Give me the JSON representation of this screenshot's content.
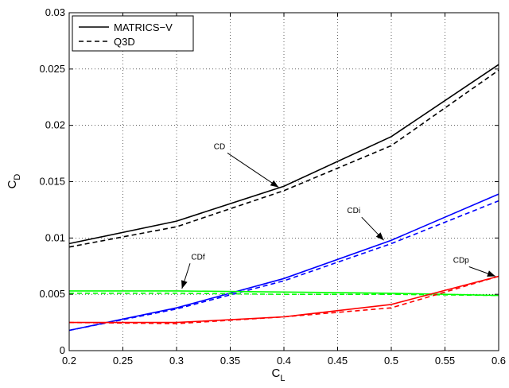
{
  "chart_data": {
    "type": "line",
    "title": "",
    "xlabel": "C",
    "xlabel_sub": "L",
    "ylabel": "C",
    "ylabel_sub": "D",
    "xlim": [
      0.2,
      0.6
    ],
    "ylim": [
      0,
      0.03
    ],
    "x_ticks": [
      0.2,
      0.25,
      0.3,
      0.35,
      0.4,
      0.45,
      0.5,
      0.55,
      0.6
    ],
    "x_tick_labels": [
      "0.2",
      "0.25",
      "0.3",
      "0.35",
      "0.4",
      "0.45",
      "0.5",
      "0.55",
      "0.6"
    ],
    "y_ticks": [
      0,
      0.005,
      0.01,
      0.015,
      0.02,
      0.025,
      0.03
    ],
    "y_tick_labels": [
      "0",
      "0.005",
      "0.01",
      "0.015",
      "0.02",
      "0.025",
      "0.03"
    ],
    "grid": true,
    "legend": {
      "placement": "top-left",
      "entries": [
        {
          "label": "MATRICS−V",
          "style": "solid",
          "color": "#000000"
        },
        {
          "label": "Q3D",
          "style": "dashed",
          "color": "#000000"
        }
      ]
    },
    "x": [
      0.2,
      0.3,
      0.4,
      0.5,
      0.6
    ],
    "series": [
      {
        "group": "CD",
        "method": "MATRICS-V",
        "style": "solid",
        "color": "#000000",
        "values": [
          0.0095,
          0.0115,
          0.0146,
          0.019,
          0.0254
        ]
      },
      {
        "group": "CD",
        "method": "Q3D",
        "style": "dashed",
        "color": "#000000",
        "values": [
          0.0092,
          0.011,
          0.0142,
          0.0182,
          0.0249
        ]
      },
      {
        "group": "CDi",
        "method": "MATRICS-V",
        "style": "solid",
        "color": "#0000ff",
        "values": [
          0.0018,
          0.0038,
          0.0064,
          0.0098,
          0.0139
        ]
      },
      {
        "group": "CDi",
        "method": "Q3D",
        "style": "dashed",
        "color": "#0000ff",
        "values": [
          0.0018,
          0.0037,
          0.0062,
          0.0095,
          0.0133
        ]
      },
      {
        "group": "CDf",
        "method": "MATRICS-V",
        "style": "solid",
        "color": "#00ff00",
        "values": [
          0.0053,
          0.0053,
          0.0052,
          0.0051,
          0.0049
        ]
      },
      {
        "group": "CDf",
        "method": "Q3D",
        "style": "dashed",
        "color": "#00ff00",
        "values": [
          0.0051,
          0.0051,
          0.005,
          0.005,
          0.0049
        ]
      },
      {
        "group": "CDp",
        "method": "MATRICS-V",
        "style": "solid",
        "color": "#ff0000",
        "values": [
          0.0025,
          0.0025,
          0.003,
          0.0041,
          0.0066
        ]
      },
      {
        "group": "CDp",
        "method": "Q3D",
        "style": "dashed",
        "color": "#ff0000",
        "values": [
          0.0025,
          0.0024,
          0.003,
          0.0038,
          0.0066
        ]
      }
    ],
    "annotations": [
      {
        "text": "CD",
        "target": [
          0.395,
          0.0145
        ],
        "label_at": [
          0.34,
          0.0179
        ]
      },
      {
        "text": "CDi",
        "target": [
          0.493,
          0.0098
        ],
        "label_at": [
          0.465,
          0.0122
        ]
      },
      {
        "text": "CDf",
        "target": [
          0.305,
          0.0055
        ],
        "label_at": [
          0.32,
          0.0081
        ]
      },
      {
        "text": "CDp",
        "target": [
          0.597,
          0.0066
        ],
        "label_at": [
          0.565,
          0.0078
        ]
      }
    ]
  }
}
